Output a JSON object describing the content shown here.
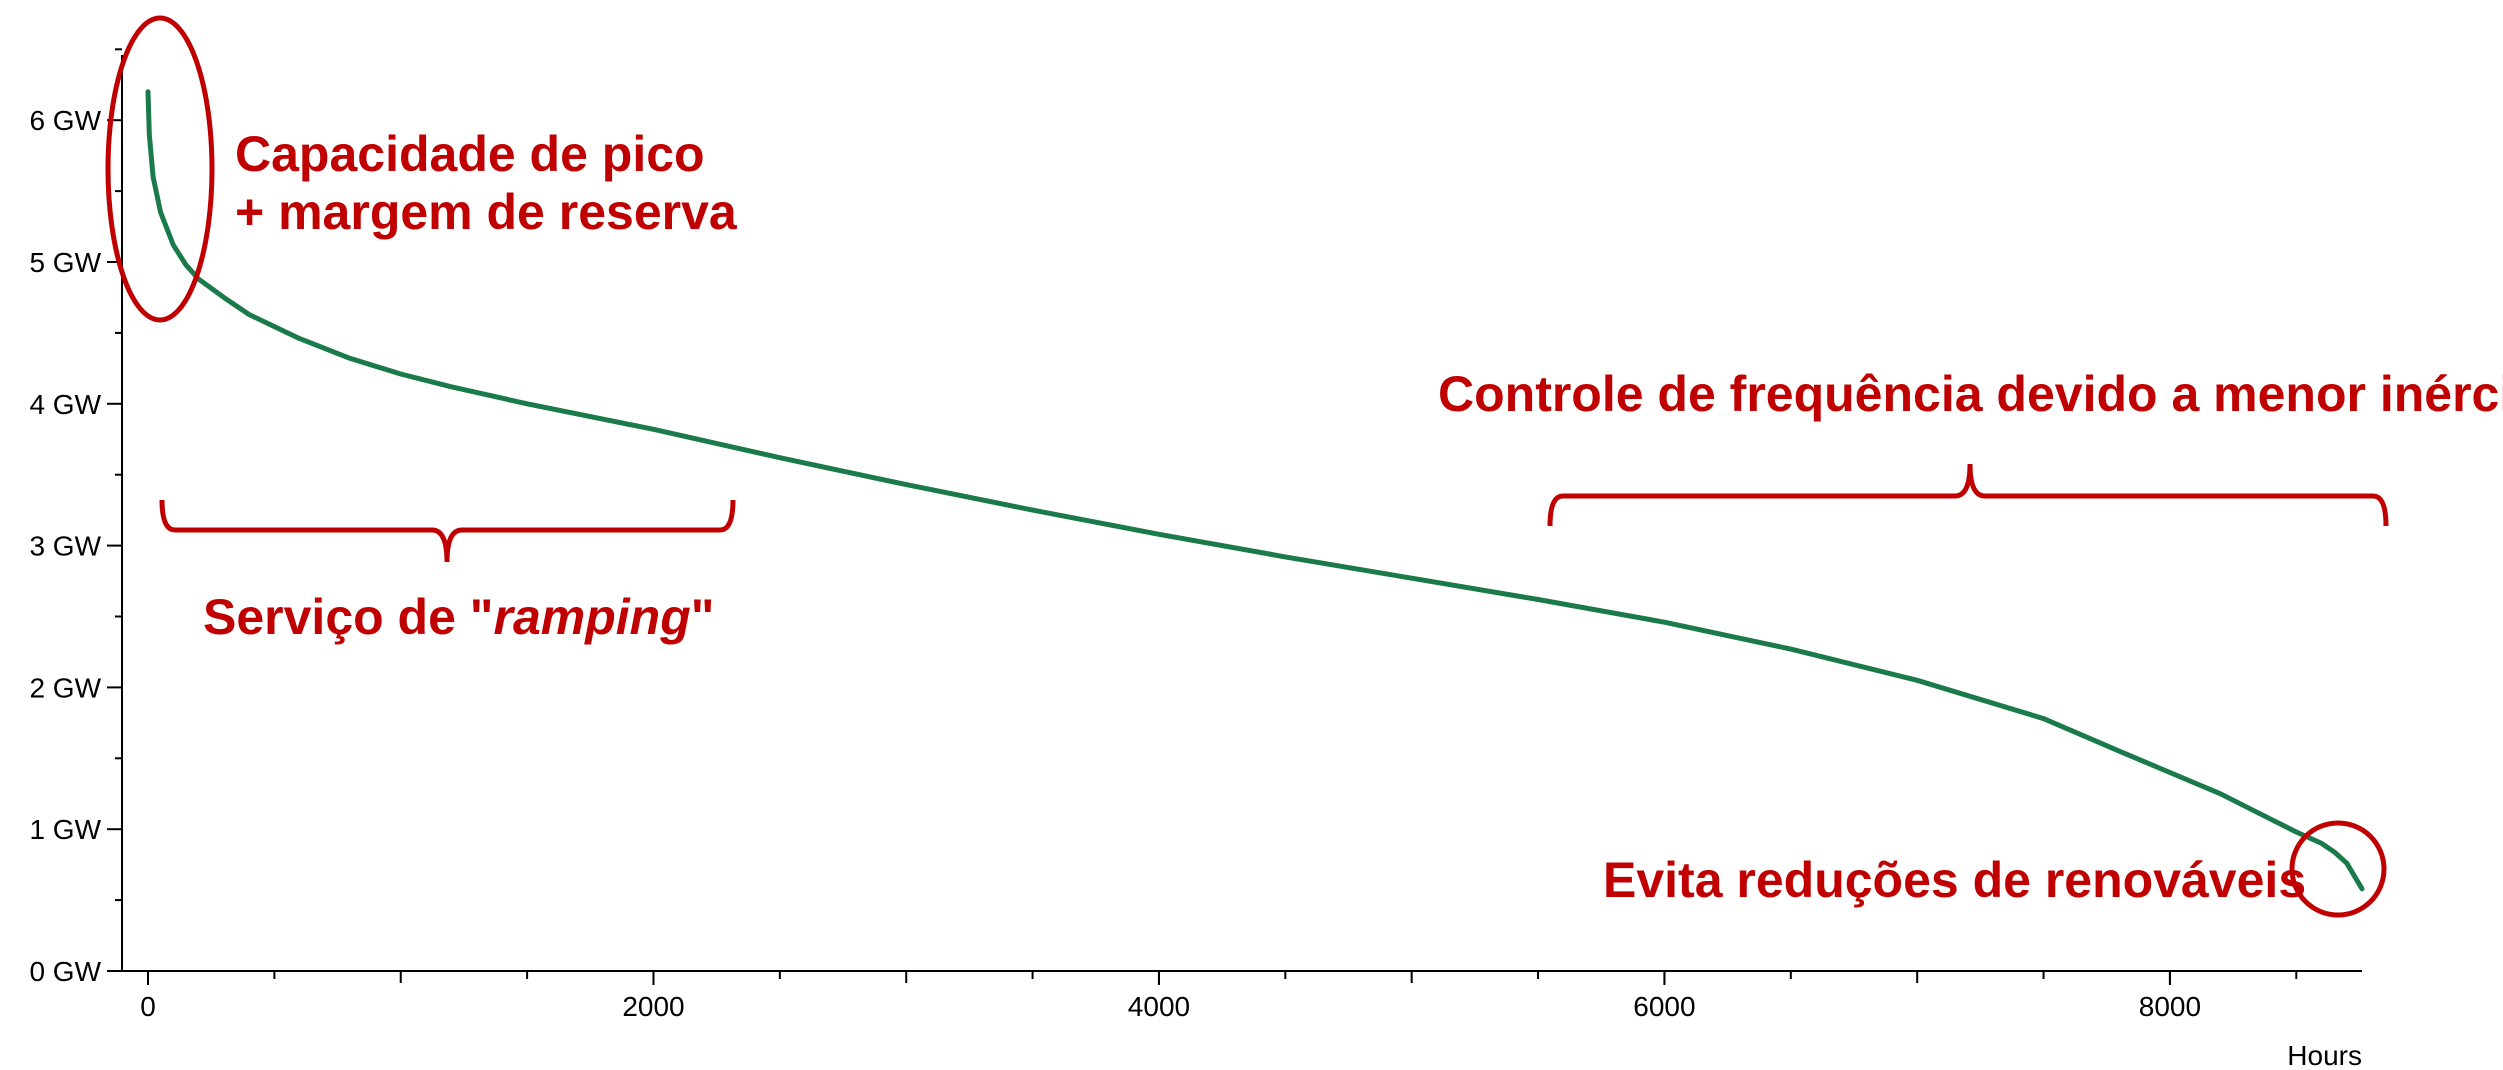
{
  "chart_data": {
    "type": "line",
    "xlabel": "Hours",
    "ylabel": "",
    "xlim": [
      0,
      8760
    ],
    "ylim": [
      0,
      6.5
    ],
    "x_ticks": [
      {
        "value": 0,
        "label": "0"
      },
      {
        "value": 2000,
        "label": "2000"
      },
      {
        "value": 4000,
        "label": "4000"
      },
      {
        "value": 6000,
        "label": "6000"
      },
      {
        "value": 8000,
        "label": "8000"
      }
    ],
    "y_ticks": [
      {
        "value": 0,
        "label": "0 GW"
      },
      {
        "value": 1,
        "label": "1 GW"
      },
      {
        "value": 2,
        "label": "2 GW"
      },
      {
        "value": 3,
        "label": "3 GW"
      },
      {
        "value": 4,
        "label": "4 GW"
      },
      {
        "value": 5,
        "label": "5 GW"
      },
      {
        "value": 6,
        "label": "6 GW"
      }
    ],
    "series": [
      {
        "color": "#1a7a4a",
        "x": [
          0,
          5,
          20,
          50,
          100,
          150,
          200,
          300,
          400,
          600,
          800,
          1000,
          1200,
          1500,
          2000,
          2500,
          3000,
          3500,
          4000,
          4500,
          5000,
          5500,
          6000,
          6500,
          7000,
          7500,
          7800,
          8000,
          8200,
          8400,
          8500,
          8600,
          8650,
          8700,
          8760
        ],
        "y": [
          6.2,
          5.9,
          5.6,
          5.35,
          5.12,
          4.98,
          4.88,
          4.75,
          4.63,
          4.46,
          4.32,
          4.21,
          4.12,
          4.0,
          3.82,
          3.62,
          3.43,
          3.25,
          3.08,
          2.92,
          2.77,
          2.62,
          2.46,
          2.27,
          2.05,
          1.78,
          1.55,
          1.4,
          1.25,
          1.07,
          0.98,
          0.9,
          0.84,
          0.76,
          0.58
        ]
      }
    ],
    "annotations": [
      {
        "text": "Capacidade de pico",
        "color": "#c00000"
      },
      {
        "text": "+ margem de reserva",
        "color": "#c00000"
      },
      {
        "text": "Controle de frequência devido a menor inércia",
        "color": "#c00000"
      },
      {
        "text_prefix": "Serviço de \"",
        "text_italic": "ramping",
        "text_suffix": "\"",
        "color": "#c00000"
      },
      {
        "text": "Evita reduções de renováveis",
        "color": "#c00000"
      }
    ]
  }
}
